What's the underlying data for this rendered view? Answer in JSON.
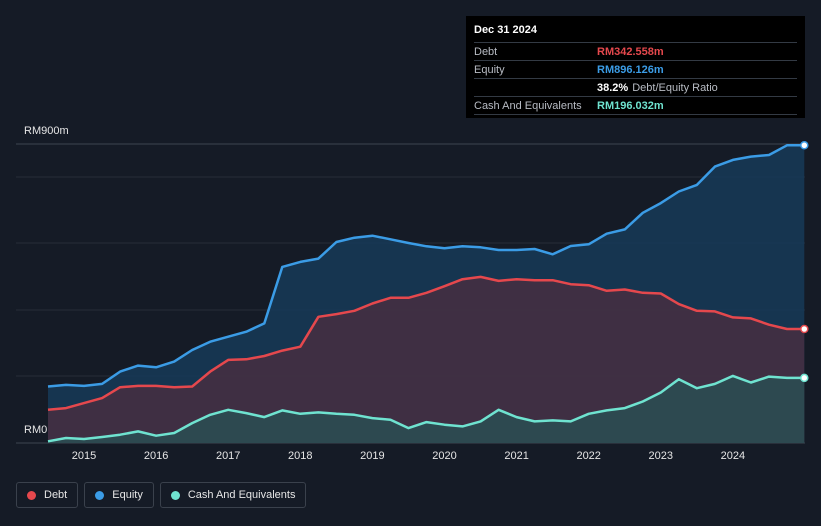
{
  "tooltip": {
    "date": "Dec 31 2024",
    "rows": [
      {
        "label": "Debt",
        "value": "RM342.558m",
        "color": "#e5484d"
      },
      {
        "label": "Equity",
        "value": "RM896.126m",
        "color": "#3b9ce6"
      },
      {
        "label": "",
        "value": "38.2%",
        "extra": "Debt/Equity Ratio",
        "color": "#ffffff"
      },
      {
        "label": "Cash And Equivalents",
        "value": "RM196.032m",
        "color": "#6fe3d0"
      }
    ]
  },
  "legend": [
    {
      "label": "Debt",
      "color": "#e5484d"
    },
    {
      "label": "Equity",
      "color": "#3b9ce6"
    },
    {
      "label": "Cash And Equivalents",
      "color": "#6fe3d0"
    }
  ],
  "chart_data": {
    "type": "area",
    "title": "",
    "xlabel": "",
    "ylabel": "",
    "y_top_label": "RM900m",
    "y_bottom_label": "RM0",
    "ylim": [
      0,
      900
    ],
    "xlim": [
      2014.5,
      2025.0
    ],
    "x_ticks": [
      "2015",
      "2016",
      "2017",
      "2018",
      "2019",
      "2020",
      "2021",
      "2022",
      "2023",
      "2024"
    ],
    "x_tick_values": [
      2015,
      2016,
      2017,
      2018,
      2019,
      2020,
      2021,
      2022,
      2023,
      2024
    ],
    "series": [
      {
        "name": "Equity",
        "color": "#3b9ce6",
        "x": [
          2014.5,
          2014.75,
          2015.0,
          2015.25,
          2015.5,
          2015.75,
          2016.0,
          2016.25,
          2016.5,
          2016.75,
          2017.0,
          2017.25,
          2017.5,
          2017.75,
          2018.0,
          2018.25,
          2018.5,
          2018.75,
          2019.0,
          2019.25,
          2019.5,
          2019.75,
          2020.0,
          2020.25,
          2020.5,
          2020.75,
          2021.0,
          2021.25,
          2021.5,
          2021.75,
          2022.0,
          2022.25,
          2022.5,
          2022.75,
          2023.0,
          2023.25,
          2023.5,
          2023.75,
          2024.0,
          2024.25,
          2024.5,
          2024.75,
          2024.99
        ],
        "values": [
          170,
          175,
          172,
          178,
          215,
          233,
          228,
          245,
          280,
          305,
          320,
          335,
          360,
          530,
          545,
          555,
          605,
          618,
          624,
          613,
          602,
          592,
          586,
          592,
          589,
          581,
          581,
          584,
          568,
          593,
          598,
          630,
          643,
          693,
          722,
          757,
          777,
          832,
          852,
          862,
          867,
          896,
          896
        ]
      },
      {
        "name": "Debt",
        "color": "#e5484d",
        "x": [
          2014.5,
          2014.75,
          2015.0,
          2015.25,
          2015.5,
          2015.75,
          2016.0,
          2016.25,
          2016.5,
          2016.75,
          2017.0,
          2017.25,
          2017.5,
          2017.75,
          2018.0,
          2018.25,
          2018.5,
          2018.75,
          2019.0,
          2019.25,
          2019.5,
          2019.75,
          2020.0,
          2020.25,
          2020.5,
          2020.75,
          2021.0,
          2021.25,
          2021.5,
          2021.75,
          2022.0,
          2022.25,
          2022.5,
          2022.75,
          2023.0,
          2023.25,
          2023.5,
          2023.75,
          2024.0,
          2024.25,
          2024.5,
          2024.75,
          2024.99
        ],
        "values": [
          100,
          105,
          120,
          135,
          168,
          172,
          172,
          168,
          170,
          215,
          250,
          252,
          262,
          278,
          290,
          380,
          388,
          398,
          420,
          437,
          437,
          452,
          472,
          493,
          500,
          488,
          493,
          490,
          490,
          478,
          475,
          458,
          462,
          452,
          450,
          418,
          398,
          396,
          378,
          375,
          356,
          343,
          343
        ]
      },
      {
        "name": "Cash And Equivalents",
        "color": "#6fe3d0",
        "x": [
          2014.5,
          2014.75,
          2015.0,
          2015.25,
          2015.5,
          2015.75,
          2016.0,
          2016.25,
          2016.5,
          2016.75,
          2017.0,
          2017.25,
          2017.5,
          2017.75,
          2018.0,
          2018.25,
          2018.5,
          2018.75,
          2019.0,
          2019.25,
          2019.5,
          2019.75,
          2020.0,
          2020.25,
          2020.5,
          2020.75,
          2021.0,
          2021.25,
          2021.5,
          2021.75,
          2022.0,
          2022.25,
          2022.5,
          2022.75,
          2023.0,
          2023.25,
          2023.5,
          2023.75,
          2024.0,
          2024.25,
          2024.5,
          2024.75,
          2024.99
        ],
        "values": [
          5,
          15,
          12,
          18,
          25,
          35,
          22,
          30,
          60,
          85,
          100,
          90,
          78,
          98,
          88,
          92,
          88,
          85,
          75,
          70,
          45,
          63,
          55,
          50,
          65,
          100,
          78,
          65,
          68,
          65,
          88,
          98,
          105,
          125,
          152,
          192,
          165,
          178,
          202,
          182,
          200,
          196,
          196
        ]
      }
    ]
  }
}
